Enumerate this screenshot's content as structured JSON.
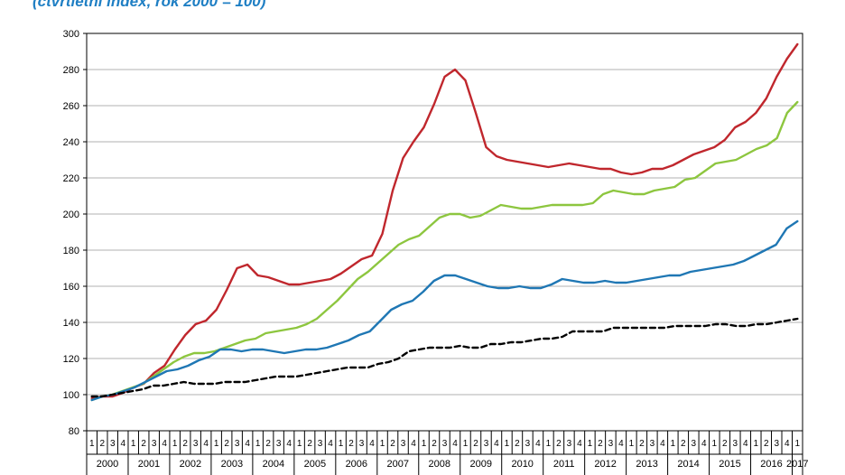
{
  "chart_data": {
    "type": "line",
    "subtitle": "(čtvrtletní index, rok 2000 = 100)",
    "ylim": [
      80,
      300
    ],
    "yticks": [
      80,
      100,
      120,
      140,
      160,
      180,
      200,
      220,
      240,
      260,
      280,
      300
    ],
    "quarter_labels": [
      "1",
      "2",
      "3",
      "4"
    ],
    "years": [
      "2000",
      "2001",
      "2002",
      "2003",
      "2004",
      "2005",
      "2006",
      "2007",
      "2008",
      "2009",
      "2010",
      "2011",
      "2012",
      "2013",
      "2014",
      "2015",
      "2016",
      "2017"
    ],
    "grid": true,
    "legend": "none",
    "series": [
      {
        "name": "red",
        "color": "#c0272d",
        "style": "solid",
        "values": [
          98,
          99,
          99,
          101,
          104,
          106,
          112,
          116,
          125,
          133,
          139,
          141,
          147,
          158,
          170,
          172,
          166,
          165,
          163,
          161,
          161,
          162,
          163,
          164,
          167,
          171,
          175,
          177,
          189,
          213,
          231,
          240,
          248,
          261,
          276,
          280,
          274,
          256,
          237,
          232,
          230,
          229,
          228,
          227,
          226,
          227,
          228,
          227,
          226,
          225,
          225,
          223,
          222,
          223,
          225,
          225,
          227,
          230,
          233,
          235,
          237,
          241,
          248,
          251,
          256,
          264,
          276,
          286,
          294
        ]
      },
      {
        "name": "green",
        "color": "#8dc63f",
        "style": "solid",
        "values": [
          97,
          99,
          100,
          102,
          104,
          106,
          110,
          114,
          118,
          121,
          123,
          123,
          124,
          126,
          128,
          130,
          131,
          134,
          135,
          136,
          137,
          139,
          142,
          147,
          152,
          158,
          164,
          168,
          173,
          178,
          183,
          186,
          188,
          193,
          198,
          200,
          200,
          198,
          199,
          202,
          205,
          204,
          203,
          203,
          204,
          205,
          205,
          205,
          205,
          206,
          211,
          213,
          212,
          211,
          211,
          213,
          214,
          215,
          219,
          220,
          224,
          228,
          229,
          230,
          233,
          236,
          238,
          242,
          256,
          262
        ]
      },
      {
        "name": "blue",
        "color": "#1f77b4",
        "style": "solid",
        "values": [
          97,
          99,
          100,
          102,
          104,
          107,
          110,
          113,
          114,
          116,
          119,
          121,
          125,
          125,
          124,
          125,
          125,
          124,
          123,
          124,
          125,
          125,
          126,
          128,
          130,
          133,
          135,
          141,
          147,
          150,
          152,
          157,
          163,
          166,
          166,
          164,
          162,
          160,
          159,
          159,
          160,
          159,
          159,
          161,
          164,
          163,
          162,
          162,
          163,
          162,
          162,
          163,
          164,
          165,
          166,
          166,
          168,
          169,
          170,
          171,
          172,
          174,
          177,
          180,
          183,
          192,
          196
        ]
      },
      {
        "name": "black-dashed",
        "color": "#000000",
        "style": "dashed",
        "values": [
          99,
          99,
          100,
          101,
          102,
          103,
          105,
          105,
          106,
          107,
          106,
          106,
          106,
          107,
          107,
          107,
          108,
          109,
          110,
          110,
          110,
          111,
          112,
          113,
          114,
          115,
          115,
          115,
          117,
          118,
          120,
          124,
          125,
          126,
          126,
          126,
          127,
          126,
          126,
          128,
          128,
          129,
          129,
          130,
          131,
          131,
          132,
          135,
          135,
          135,
          135,
          137,
          137,
          137,
          137,
          137,
          137,
          138,
          138,
          138,
          138,
          139,
          139,
          138,
          138,
          139,
          139,
          140,
          141,
          142
        ]
      }
    ]
  }
}
